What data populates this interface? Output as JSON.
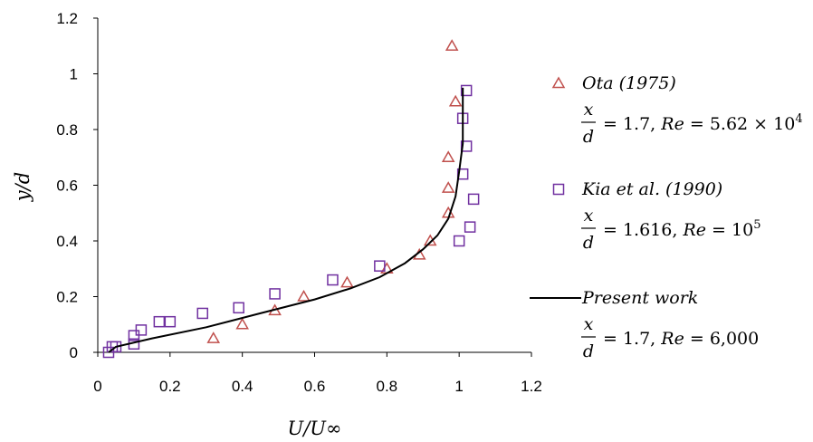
{
  "chart_data": {
    "type": "scatter",
    "xlabel": "U/U∞",
    "ylabel": "y/d",
    "xlim": [
      0,
      1.2
    ],
    "ylim": [
      0,
      1.2
    ],
    "x_ticks": [
      "0",
      "0.2",
      "0.4",
      "0.6",
      "0.8",
      "1",
      "1.2"
    ],
    "y_ticks": [
      "0",
      "0.2",
      "0.4",
      "0.6",
      "0.8",
      "1",
      "1.2"
    ],
    "grid": false,
    "legend_position": "right",
    "series": [
      {
        "name": "Ota (1975)",
        "condition": {
          "x_over_d": "1.7",
          "re_label": "Re = 5.62 × 10",
          "re_exponent": "4"
        },
        "marker": "triangle",
        "color": "#c0504d",
        "points": [
          [
            0.32,
            0.05
          ],
          [
            0.4,
            0.1
          ],
          [
            0.49,
            0.15
          ],
          [
            0.57,
            0.2
          ],
          [
            0.69,
            0.25
          ],
          [
            0.8,
            0.3
          ],
          [
            0.89,
            0.35
          ],
          [
            0.92,
            0.4
          ],
          [
            0.97,
            0.5
          ],
          [
            0.97,
            0.59
          ],
          [
            0.97,
            0.7
          ],
          [
            0.99,
            0.9
          ],
          [
            0.98,
            1.1
          ]
        ]
      },
      {
        "name": "Kia et al. (1990)",
        "condition": {
          "x_over_d": "1.616",
          "re_label": "Re = 10",
          "re_exponent": "5"
        },
        "marker": "square",
        "color": "#7030a0",
        "points": [
          [
            0.03,
            0.0
          ],
          [
            0.04,
            0.02
          ],
          [
            0.05,
            0.02
          ],
          [
            0.1,
            0.03
          ],
          [
            0.1,
            0.06
          ],
          [
            0.12,
            0.08
          ],
          [
            0.17,
            0.11
          ],
          [
            0.2,
            0.11
          ],
          [
            0.29,
            0.14
          ],
          [
            0.39,
            0.16
          ],
          [
            0.49,
            0.21
          ],
          [
            0.65,
            0.26
          ],
          [
            0.78,
            0.31
          ],
          [
            1.0,
            0.4
          ],
          [
            1.03,
            0.45
          ],
          [
            1.04,
            0.55
          ],
          [
            1.01,
            0.64
          ],
          [
            1.02,
            0.74
          ],
          [
            1.01,
            0.84
          ],
          [
            1.02,
            0.94
          ]
        ]
      },
      {
        "name": "Present work",
        "condition": {
          "x_over_d": "1.7",
          "re_label": "Re = 6,000",
          "re_exponent": ""
        },
        "marker": "line",
        "color": "#000000",
        "points": [
          [
            0.03,
            0.0
          ],
          [
            0.05,
            0.02
          ],
          [
            0.15,
            0.05
          ],
          [
            0.3,
            0.09
          ],
          [
            0.45,
            0.14
          ],
          [
            0.6,
            0.19
          ],
          [
            0.7,
            0.23
          ],
          [
            0.78,
            0.27
          ],
          [
            0.85,
            0.32
          ],
          [
            0.9,
            0.37
          ],
          [
            0.94,
            0.42
          ],
          [
            0.97,
            0.48
          ],
          [
            0.99,
            0.56
          ],
          [
            1.0,
            0.65
          ],
          [
            1.01,
            0.75
          ],
          [
            1.01,
            0.85
          ],
          [
            1.01,
            0.95
          ]
        ]
      }
    ]
  }
}
